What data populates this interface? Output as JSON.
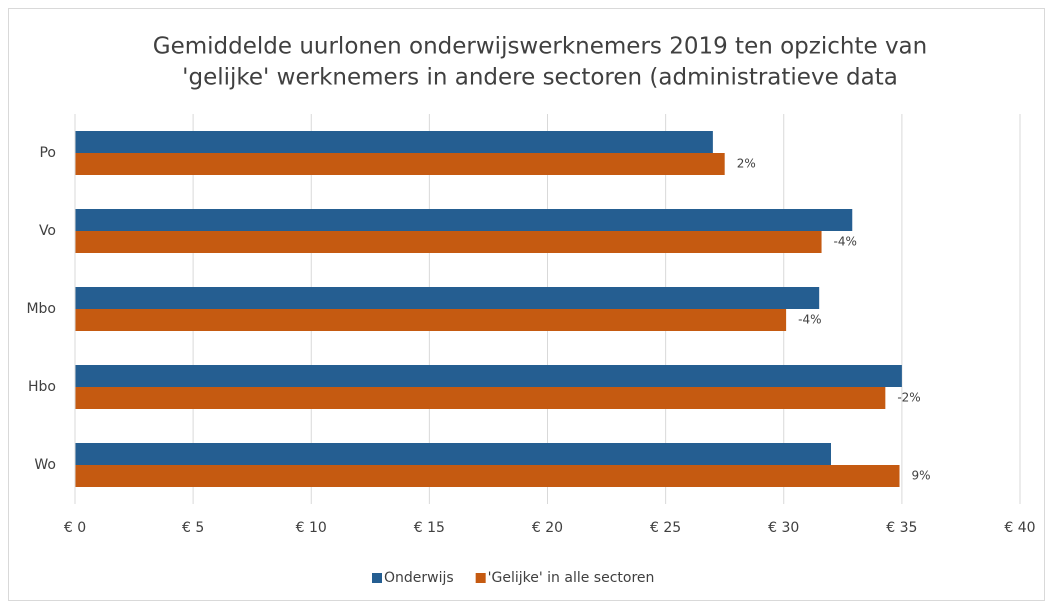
{
  "chart_data": {
    "type": "hbar",
    "title": [
      "Gemiddelde uurlonen onderwijswerknemers 2019 ten opzichte van",
      "'gelijke' werknemers in andere sectoren (administratieve data"
    ],
    "categories": [
      "Po",
      "Vo",
      "Mbo",
      "Hbo",
      "Wo"
    ],
    "series": [
      {
        "name": "Onderwijs",
        "color": "#255e91",
        "values": [
          27.0,
          32.9,
          31.5,
          35.0,
          32.0
        ]
      },
      {
        "name": "'Gelijke' in alle sectoren",
        "color": "#c55a11",
        "values": [
          27.5,
          31.6,
          30.1,
          34.3,
          34.9
        ],
        "data_labels": [
          "2%",
          "-4%",
          "-4%",
          "-2%",
          "9%"
        ]
      }
    ],
    "xlim": [
      0,
      40
    ],
    "xticks": [
      {
        "value": 0,
        "label": "€ 0"
      },
      {
        "value": 5,
        "label": "€ 5"
      },
      {
        "value": 10,
        "label": "€ 10"
      },
      {
        "value": 15,
        "label": "€ 15"
      },
      {
        "value": 20,
        "label": "€ 20"
      },
      {
        "value": 25,
        "label": "€ 25"
      },
      {
        "value": 30,
        "label": "€ 30"
      },
      {
        "value": 35,
        "label": "€ 35"
      },
      {
        "value": 40,
        "label": "€ 40"
      }
    ],
    "grid": true,
    "legend": "bottom"
  }
}
